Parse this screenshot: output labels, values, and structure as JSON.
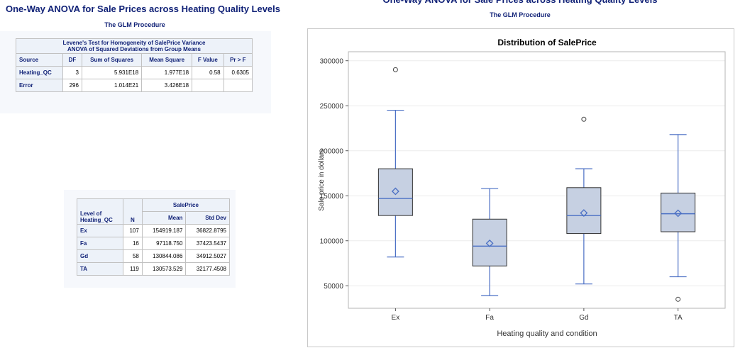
{
  "report": {
    "title": "One-Way ANOVA for Sale Prices across Heating Quality Levels",
    "procedure": "The GLM Procedure"
  },
  "levene": {
    "caption_line1": "Levene's Test for Homogeneity of SalePrice Variance",
    "caption_line2": "ANOVA of Squared Deviations from Group Means",
    "headers": [
      "Source",
      "DF",
      "Sum of Squares",
      "Mean Square",
      "F Value",
      "Pr > F"
    ],
    "rows": [
      [
        "Heating_QC",
        "3",
        "5.931E18",
        "1.977E18",
        "0.58",
        "0.6305"
      ],
      [
        "Error",
        "296",
        "1.014E21",
        "3.426E18",
        "",
        ""
      ]
    ]
  },
  "means": {
    "spanner": "SalePrice",
    "level_header": "Level of Heating_QC",
    "headers": [
      "N",
      "Mean",
      "Std Dev"
    ],
    "rows": [
      [
        "Ex",
        "107",
        "154919.187",
        "36822.8795"
      ],
      [
        "Fa",
        "16",
        "97118.750",
        "37423.5437"
      ],
      [
        "Gd",
        "58",
        "130844.086",
        "34912.5027"
      ],
      [
        "TA",
        "119",
        "130573.529",
        "32177.4508"
      ]
    ]
  },
  "chart_data": {
    "type": "box",
    "title": "Distribution of SalePrice",
    "xlabel": "Heating quality and condition",
    "ylabel": "Sale price in dollars",
    "ylim": [
      25000,
      310000
    ],
    "yticks": [
      50000,
      100000,
      150000,
      200000,
      250000,
      300000
    ],
    "grid": true,
    "colors": {
      "box_fill": "#c6d0e2",
      "box_line": "#4a6fc4",
      "outlier": "#444444"
    },
    "categories": [
      "Ex",
      "Fa",
      "Gd",
      "TA"
    ],
    "boxes": [
      {
        "category": "Ex",
        "whisker_low": 82000,
        "q1": 128000,
        "median": 147000,
        "q3": 180000,
        "whisker_high": 245000,
        "mean": 154919.187,
        "outliers": [
          290000
        ]
      },
      {
        "category": "Fa",
        "whisker_low": 39000,
        "q1": 72000,
        "median": 94000,
        "q3": 124000,
        "whisker_high": 158000,
        "mean": 97118.75,
        "outliers": []
      },
      {
        "category": "Gd",
        "whisker_low": 52000,
        "q1": 108000,
        "median": 128000,
        "q3": 159000,
        "whisker_high": 180000,
        "mean": 130844.086,
        "outliers": [
          235000
        ]
      },
      {
        "category": "TA",
        "whisker_low": 60000,
        "q1": 110000,
        "median": 130000,
        "q3": 153000,
        "whisker_high": 218000,
        "mean": 130573.529,
        "outliers": [
          35000
        ]
      }
    ]
  }
}
